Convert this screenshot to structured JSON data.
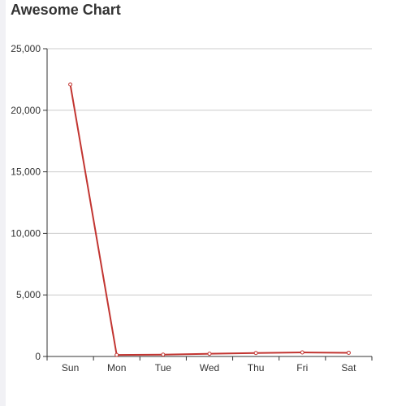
{
  "chart_data": {
    "type": "line",
    "title": "Awesome Chart",
    "xlabel": "",
    "ylabel": "",
    "categories": [
      "Sun",
      "Mon",
      "Tue",
      "Wed",
      "Thu",
      "Fri",
      "Sat"
    ],
    "series": [
      {
        "values": [
          22100,
          120,
          150,
          220,
          280,
          330,
          300
        ]
      }
    ],
    "ylim": [
      0,
      25000
    ],
    "yticks": [
      0,
      5000,
      10000,
      15000,
      20000,
      25000
    ],
    "ytick_labels": [
      "0",
      "5,000",
      "10,000",
      "15,000",
      "20,000",
      "25,000"
    ],
    "grid": "horizontal",
    "legend": "none",
    "line_color": "#c23531",
    "marker_fill": "#ffffff"
  }
}
